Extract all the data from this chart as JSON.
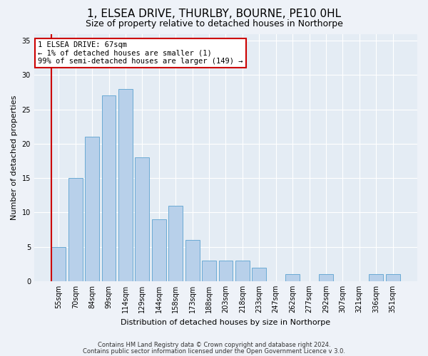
{
  "title1": "1, ELSEA DRIVE, THURLBY, BOURNE, PE10 0HL",
  "title2": "Size of property relative to detached houses in Northorpe",
  "xlabel": "Distribution of detached houses by size in Northorpe",
  "ylabel": "Number of detached properties",
  "categories": [
    "55sqm",
    "70sqm",
    "84sqm",
    "99sqm",
    "114sqm",
    "129sqm",
    "144sqm",
    "158sqm",
    "173sqm",
    "188sqm",
    "203sqm",
    "218sqm",
    "233sqm",
    "247sqm",
    "262sqm",
    "277sqm",
    "292sqm",
    "307sqm",
    "321sqm",
    "336sqm",
    "351sqm"
  ],
  "values": [
    5,
    15,
    21,
    27,
    28,
    18,
    9,
    11,
    6,
    3,
    3,
    3,
    2,
    0,
    1,
    0,
    1,
    0,
    0,
    1,
    1
  ],
  "bar_color": "#b8d0ea",
  "bar_edge_color": "#6aaad4",
  "highlight_color": "#cc0000",
  "annotation_line1": "1 ELSEA DRIVE: 67sqm",
  "annotation_line2": "← 1% of detached houses are smaller (1)",
  "annotation_line3": "99% of semi-detached houses are larger (149) →",
  "annotation_box_color": "#ffffff",
  "annotation_box_edge": "#cc0000",
  "ylim": [
    0,
    36
  ],
  "yticks": [
    0,
    5,
    10,
    15,
    20,
    25,
    30,
    35
  ],
  "footer1": "Contains HM Land Registry data © Crown copyright and database right 2024.",
  "footer2": "Contains public sector information licensed under the Open Government Licence v 3.0.",
  "background_color": "#eef2f8",
  "plot_background": "#e4ecf4",
  "title1_fontsize": 11,
  "title2_fontsize": 9,
  "ylabel_fontsize": 8,
  "xlabel_fontsize": 8,
  "tick_fontsize": 7,
  "annotation_fontsize": 7.5,
  "footer_fontsize": 6
}
